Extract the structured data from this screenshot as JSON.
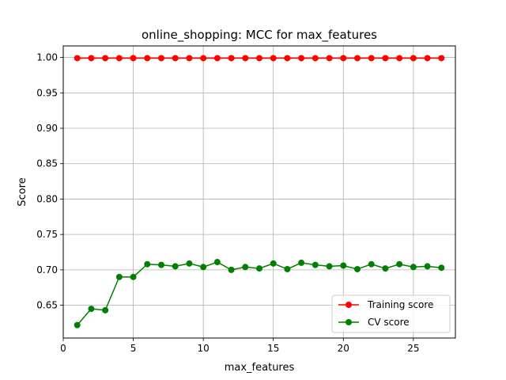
{
  "chart_data": {
    "type": "line",
    "title": "online_shopping: MCC for max_features",
    "xlabel": "max_features",
    "ylabel": "Score",
    "xlim": [
      0,
      28
    ],
    "ylim": [
      0.6037,
      1.0163
    ],
    "xticks": [
      "0",
      "5",
      "10",
      "15",
      "20",
      "25"
    ],
    "yticks": [
      "0.65",
      "0.70",
      "0.75",
      "0.80",
      "0.85",
      "0.90",
      "0.95",
      "1.00"
    ],
    "grid": true,
    "legend_position": "lower-right",
    "x": [
      1,
      2,
      3,
      4,
      5,
      6,
      7,
      8,
      9,
      10,
      11,
      12,
      13,
      14,
      15,
      16,
      17,
      18,
      19,
      20,
      21,
      22,
      23,
      24,
      25,
      26,
      27
    ],
    "series": [
      {
        "name": "Training score",
        "color": "#ff0000",
        "values": [
          0.999,
          0.999,
          0.999,
          0.999,
          0.999,
          0.999,
          0.999,
          0.999,
          0.999,
          0.999,
          0.999,
          0.999,
          0.999,
          0.999,
          0.999,
          0.999,
          0.999,
          0.999,
          0.999,
          0.999,
          0.999,
          0.999,
          0.999,
          0.999,
          0.999,
          0.999,
          0.999
        ]
      },
      {
        "name": "CV score",
        "color": "#008000",
        "values": [
          0.622,
          0.645,
          0.643,
          0.69,
          0.69,
          0.708,
          0.707,
          0.705,
          0.709,
          0.704,
          0.711,
          0.7,
          0.704,
          0.702,
          0.709,
          0.701,
          0.71,
          0.707,
          0.705,
          0.706,
          0.701,
          0.708,
          0.702,
          0.708,
          0.704,
          0.705,
          0.703
        ]
      }
    ]
  }
}
